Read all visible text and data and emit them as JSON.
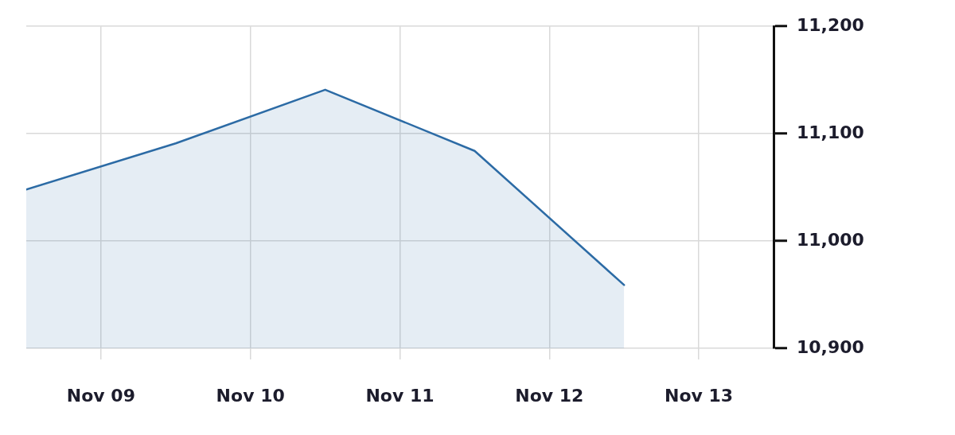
{
  "chart_data": {
    "type": "area",
    "x": [
      "--11-08T12:00",
      "--11-09T12:00",
      "--11-10T12:00",
      "--11-11T12:00",
      "--11-12T12:00"
    ],
    "series": [
      {
        "color": "#2c6ba5",
        "values": [
          11048,
          11091,
          11141,
          11084,
          10959
        ]
      }
    ],
    "xlim": [
      "--11-08T12:00",
      "--11-13T12:00"
    ],
    "xticks": [
      {
        "value": "--11-09",
        "label": "Nov 09"
      },
      {
        "value": "--11-10",
        "label": "Nov 10"
      },
      {
        "value": "--11-11",
        "label": "Nov 11"
      },
      {
        "value": "--11-12",
        "label": "Nov 12"
      },
      {
        "value": "--11-13",
        "label": "Nov 13"
      }
    ],
    "ylim": [
      10900,
      11200
    ],
    "yticks": [
      {
        "value": 10900,
        "label": "10,900"
      },
      {
        "value": 11000,
        "label": "11,000"
      },
      {
        "value": 11100,
        "label": "11,100"
      },
      {
        "value": 11200,
        "label": "11,200"
      }
    ],
    "grid": true,
    "legend": false
  }
}
